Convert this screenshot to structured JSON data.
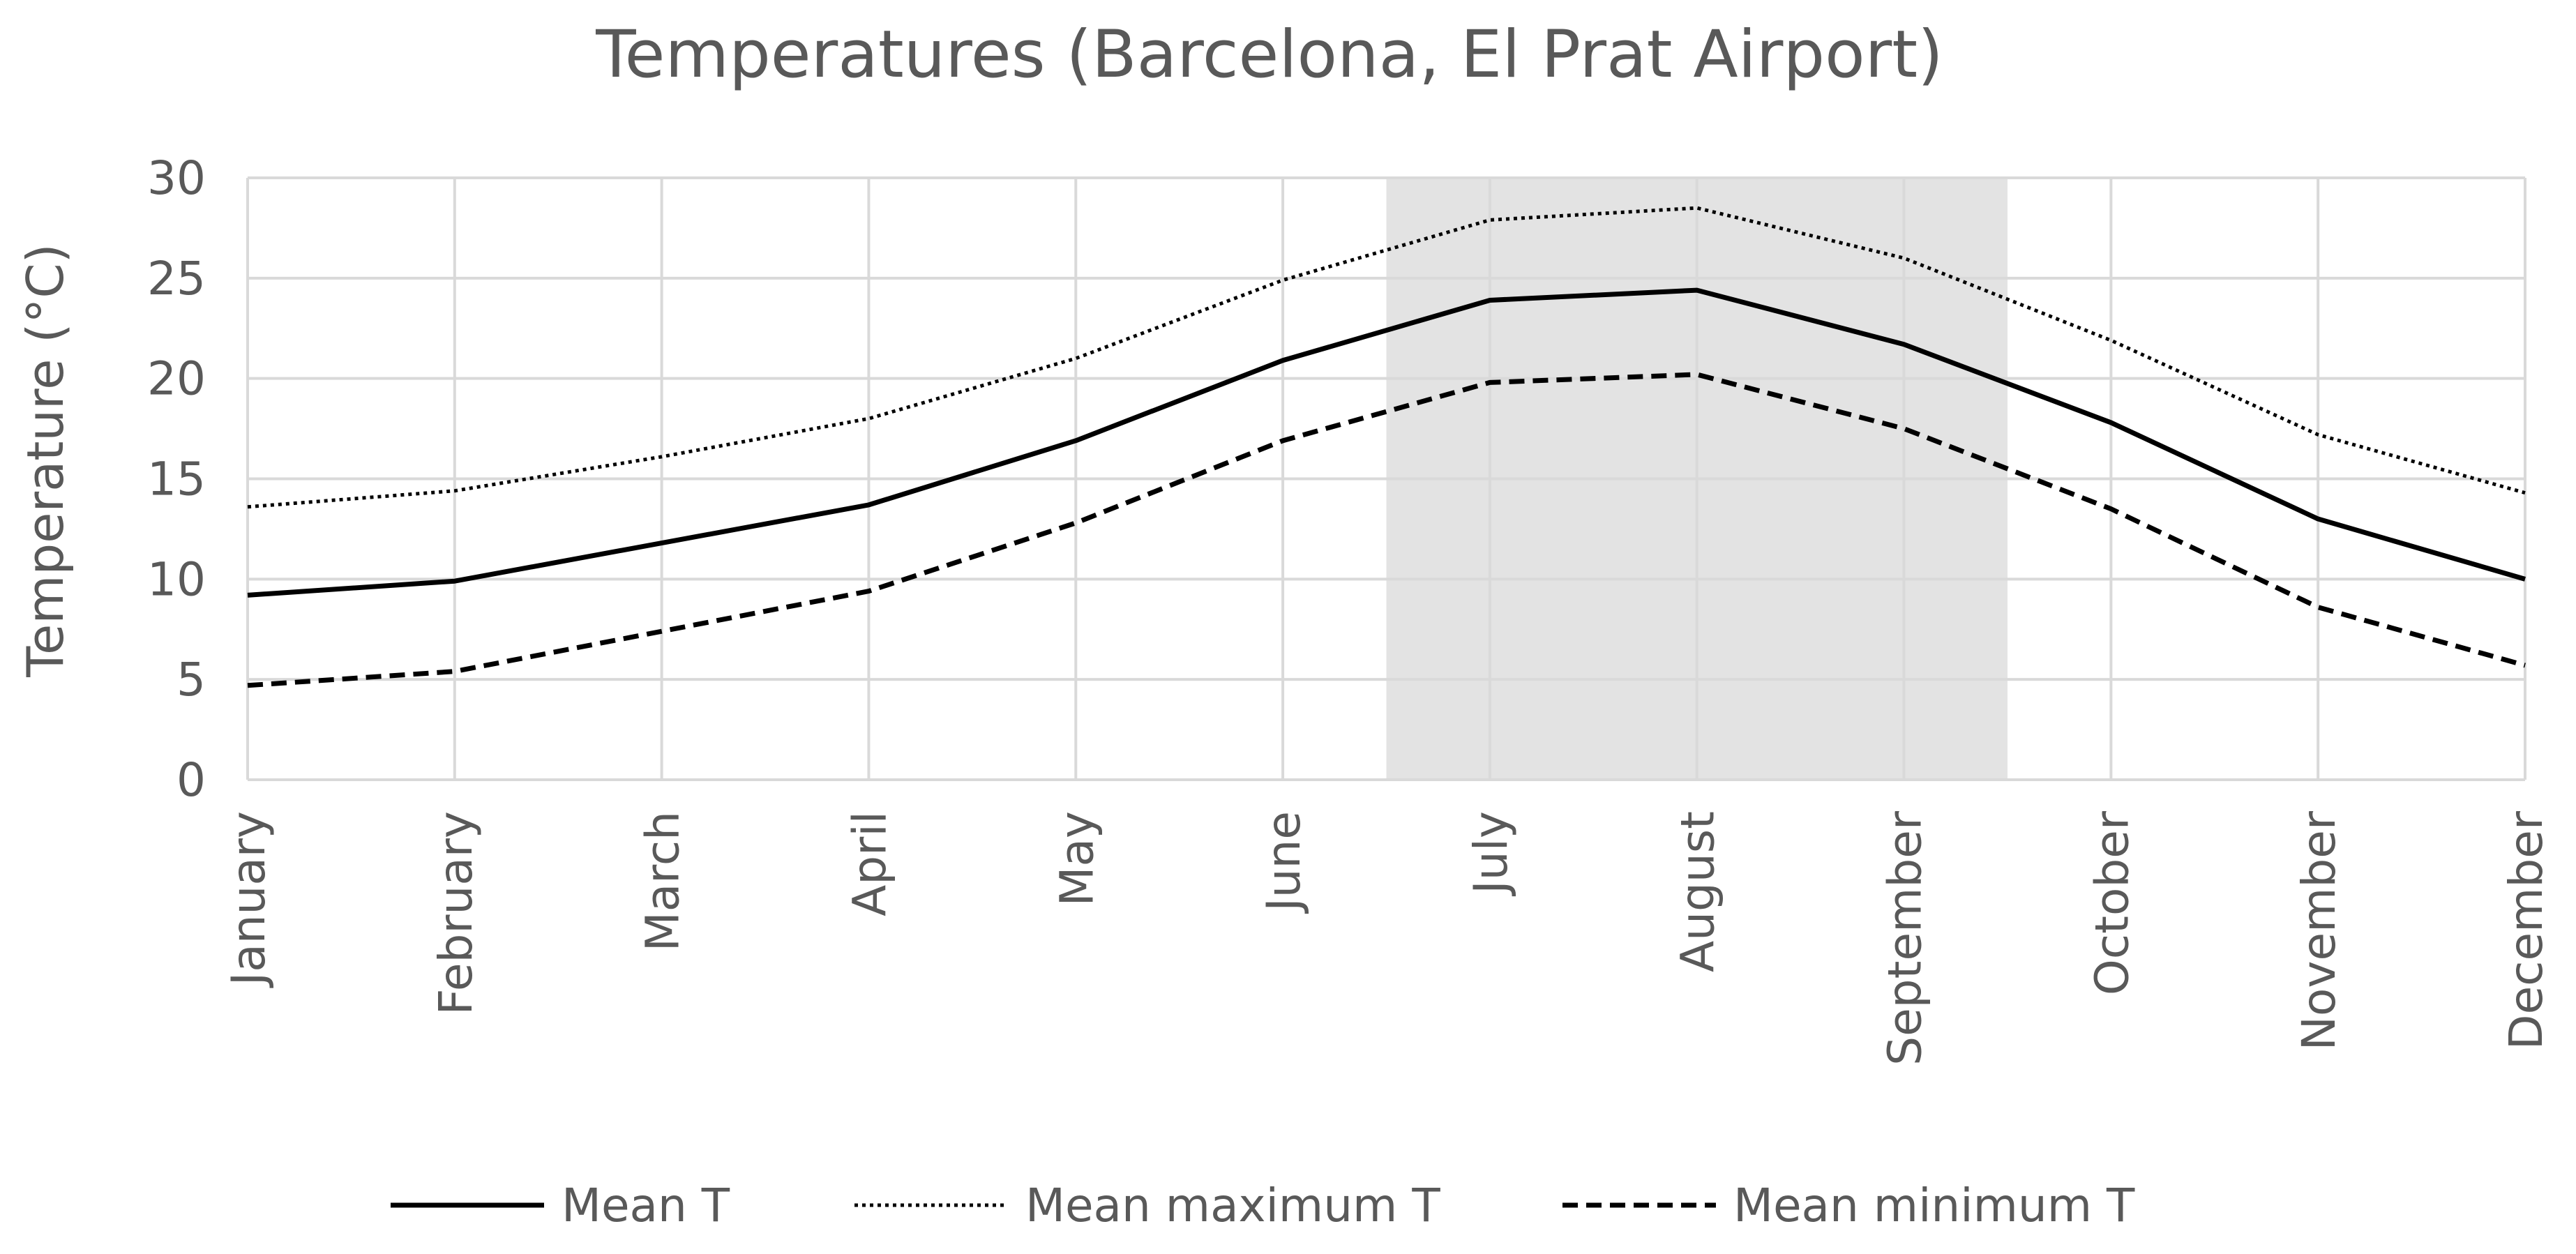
{
  "chart_data": {
    "type": "line",
    "title": "Temperatures (Barcelona, El Prat Airport)",
    "xlabel": "",
    "ylabel": "Temperature (°C)",
    "ylim": [
      0,
      30
    ],
    "yticks": [
      0,
      5,
      10,
      15,
      20,
      25,
      30
    ],
    "grid": true,
    "legend_position": "bottom",
    "categories": [
      "January",
      "February",
      "March",
      "April",
      "May",
      "June",
      "July",
      "August",
      "September",
      "October",
      "November",
      "December"
    ],
    "shaded_region": {
      "from": 5.5,
      "to": 8.5,
      "color": "#e3e3e3"
    },
    "series": [
      {
        "name": "Mean T",
        "style": "solid",
        "values": [
          9.2,
          9.9,
          11.8,
          13.7,
          16.9,
          20.9,
          23.9,
          24.4,
          21.7,
          17.8,
          13.0,
          10.0
        ]
      },
      {
        "name": "Mean maximum T",
        "style": "dotted",
        "values": [
          13.6,
          14.4,
          16.1,
          18.0,
          21.0,
          24.9,
          27.9,
          28.5,
          26.0,
          21.9,
          17.2,
          14.3
        ]
      },
      {
        "name": "Mean minimum T",
        "style": "dashed",
        "values": [
          4.7,
          5.4,
          7.4,
          9.4,
          12.8,
          16.9,
          19.8,
          20.2,
          17.5,
          13.5,
          8.6,
          5.7
        ]
      }
    ],
    "colors": {
      "line": "#000000",
      "grid": "#d9d9d9",
      "text": "#595959",
      "shade": "#e3e3e3"
    }
  }
}
